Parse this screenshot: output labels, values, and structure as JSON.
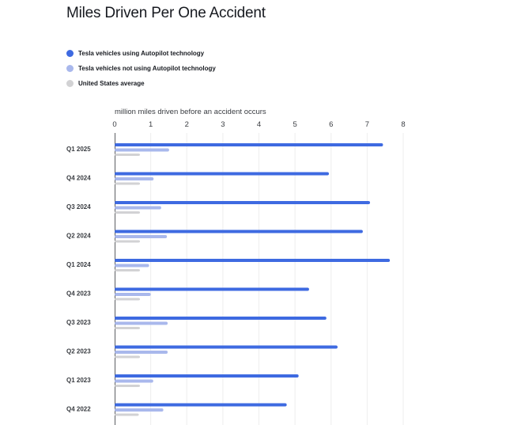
{
  "chart_data": {
    "type": "bar",
    "orientation": "horizontal",
    "title": "Miles Driven Per One Accident",
    "xlabel": "million miles driven before an accident occurs",
    "ylabel": "",
    "xlim": [
      0,
      8
    ],
    "x_ticks": [
      "0",
      "1",
      "2",
      "3",
      "4",
      "5",
      "6",
      "7",
      "8"
    ],
    "grid": true,
    "legend_position": "top-left",
    "categories": [
      "Q1 2025",
      "Q4 2024",
      "Q3 2024",
      "Q2 2024",
      "Q1 2024",
      "Q4 2023",
      "Q3 2023",
      "Q2 2023",
      "Q1 2023",
      "Q4 2022"
    ],
    "series": [
      {
        "name": "Tesla vehicles using Autopilot technology",
        "color": "#3e6ae1",
        "values": [
          7.44,
          5.94,
          7.08,
          6.88,
          7.63,
          5.39,
          5.87,
          6.18,
          5.1,
          4.77
        ]
      },
      {
        "name": "Tesla vehicles not using Autopilot technology",
        "color": "#a9b8ec",
        "values": [
          1.51,
          1.08,
          1.29,
          1.45,
          0.955,
          1.0,
          1.47,
          1.47,
          1.07,
          1.35
        ]
      },
      {
        "name": "United States average",
        "color": "#d2d2d4",
        "values": [
          0.702,
          0.702,
          0.702,
          0.702,
          0.702,
          0.702,
          0.702,
          0.702,
          0.702,
          0.67
        ]
      }
    ]
  }
}
